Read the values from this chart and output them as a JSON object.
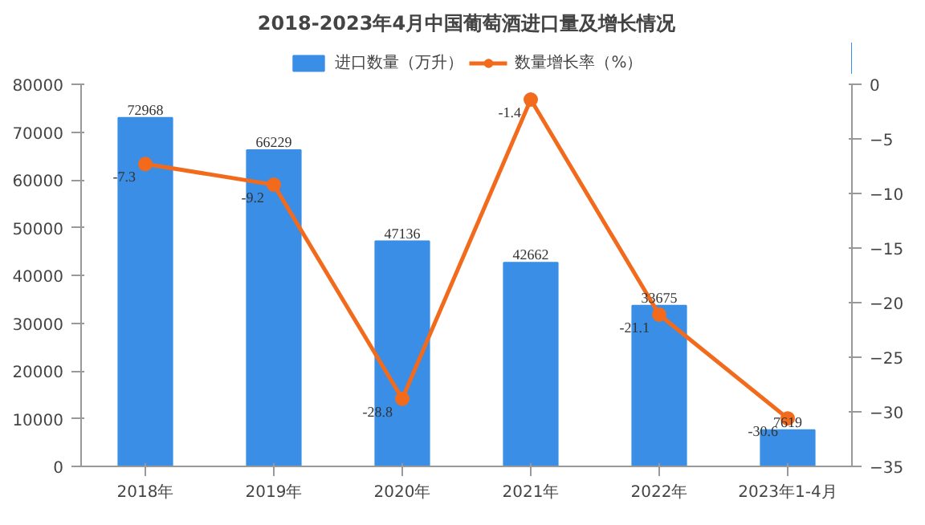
{
  "chart_data": {
    "type": "bar",
    "title": "2018-2023年4月中国葡萄酒进口量及增长情况",
    "categories": [
      "2018年",
      "2019年",
      "2020年",
      "2021年",
      "2022年",
      "2023年1-4月"
    ],
    "series": [
      {
        "name": "进口数量（万升）",
        "color": "#3a8ee6",
        "values": [
          72968,
          66229,
          47136,
          42662,
          33675,
          7619
        ]
      },
      {
        "name": "数量增长率（%）",
        "type": "line",
        "axis": "y2",
        "color": "#f26b1d",
        "marker": "circle",
        "values": [
          -7.3,
          -9.2,
          -28.8,
          -1.4,
          -21.1,
          -30.6
        ]
      }
    ],
    "ylim": [
      0,
      80000
    ],
    "yticks": [
      0,
      10000,
      20000,
      30000,
      40000,
      50000,
      60000,
      70000,
      80000
    ],
    "y2lim": [
      -35,
      0
    ],
    "y2ticks": [
      -35,
      -30,
      -25,
      -20,
      -15,
      -10,
      -5,
      0
    ],
    "data_labels": true,
    "legend": "top",
    "grid": false
  }
}
